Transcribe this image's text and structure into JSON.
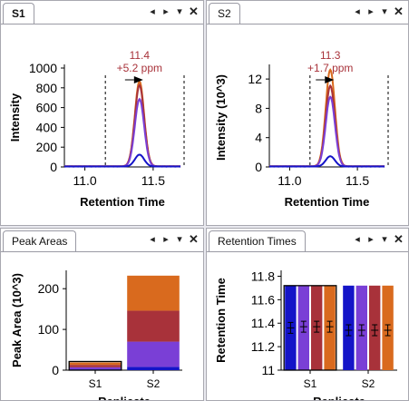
{
  "panels": {
    "s1": {
      "tab": "S1",
      "controls": [
        "◂",
        "▸",
        "▾",
        "✕"
      ],
      "annotation": {
        "rt": "11.4",
        "ppm": "+5.2 ppm"
      }
    },
    "s2": {
      "tab": "S2",
      "controls": [
        "◂",
        "▸",
        "▾",
        "✕"
      ],
      "annotation": {
        "rt": "11.3",
        "ppm": "+1.7 ppm"
      }
    },
    "peak_areas": {
      "tab": "Peak Areas",
      "controls": [
        "◂",
        "▸",
        "▾",
        "✕"
      ]
    },
    "retention_times": {
      "tab": "Retention Times",
      "controls": [
        "◂",
        "▸",
        "▾",
        "✕"
      ]
    }
  },
  "colors": {
    "orange": "#d96a1e",
    "red": "#a8323a",
    "purple": "#7a3fd6",
    "blue": "#1414c8",
    "annotation": "#a8323a"
  },
  "chart_data": [
    {
      "id": "s1",
      "type": "line",
      "xlabel": "Retention Time",
      "ylabel": "Intensity",
      "xlim": [
        10.85,
        11.7
      ],
      "ylim": [
        0,
        1000
      ],
      "xticks": [
        "11.0",
        "11.5"
      ],
      "xtick_values": [
        11.0,
        11.5
      ],
      "yticks": [
        "0",
        "200",
        "400",
        "600",
        "800",
        "1000"
      ],
      "ytick_values": [
        0,
        200,
        400,
        600,
        800,
        1000
      ],
      "boundaries": [
        11.15,
        11.75
      ],
      "apex_rt": 11.4,
      "series": [
        {
          "color": "#d96a1e",
          "peak": 860
        },
        {
          "color": "#a8323a",
          "peak": 820
        },
        {
          "color": "#7a3fd6",
          "peak": 680
        },
        {
          "color": "#1414c8",
          "peak": 120
        }
      ]
    },
    {
      "id": "s2",
      "type": "line",
      "xlabel": "Retention Time",
      "ylabel": "Intensity (10^3)",
      "xlim": [
        10.85,
        11.7
      ],
      "ylim": [
        0,
        13.5
      ],
      "xticks": [
        "11.0",
        "11.5"
      ],
      "xtick_values": [
        11.0,
        11.5
      ],
      "yticks": [
        "0",
        "4",
        "8",
        "12"
      ],
      "ytick_values": [
        0,
        4,
        8,
        12
      ],
      "boundaries": [
        11.15,
        11.75
      ],
      "apex_rt": 11.3,
      "series": [
        {
          "color": "#d96a1e",
          "peak": 13.2
        },
        {
          "color": "#a8323a",
          "peak": 11.0
        },
        {
          "color": "#7a3fd6",
          "peak": 9.5
        },
        {
          "color": "#1414c8",
          "peak": 1.4
        }
      ]
    },
    {
      "id": "peak_areas",
      "type": "bar",
      "xlabel": "Replicate",
      "ylabel": "Peak Area (10^3)",
      "categories": [
        "S1",
        "S2"
      ],
      "ylim": [
        0,
        245
      ],
      "yticks": [
        "0",
        "100",
        "200"
      ],
      "ytick_values": [
        0,
        100,
        200
      ],
      "stacked": true,
      "series": [
        {
          "color": "#1414c8",
          "values": [
            2,
            8
          ]
        },
        {
          "color": "#7a3fd6",
          "values": [
            5,
            62
          ]
        },
        {
          "color": "#a8323a",
          "values": [
            6,
            76
          ]
        },
        {
          "color": "#d96a1e",
          "values": [
            6,
            86
          ]
        }
      ],
      "selected_category": "S1"
    },
    {
      "id": "retention_times",
      "type": "bar",
      "xlabel": "Replicate",
      "ylabel": "Retention Time",
      "categories": [
        "S1",
        "S2"
      ],
      "ylim": [
        11.0,
        11.85
      ],
      "yticks": [
        "11",
        "11.2",
        "11.4",
        "11.6",
        "11.8"
      ],
      "ytick_values": [
        11.0,
        11.2,
        11.4,
        11.6,
        11.8
      ],
      "series": [
        {
          "color": "#1414c8",
          "values": [
            11.36,
            11.34
          ]
        },
        {
          "color": "#7a3fd6",
          "values": [
            11.37,
            11.34
          ]
        },
        {
          "color": "#a8323a",
          "values": [
            11.37,
            11.34
          ]
        },
        {
          "color": "#d96a1e",
          "values": [
            11.37,
            11.34
          ]
        }
      ],
      "selected_category": "S1"
    }
  ]
}
